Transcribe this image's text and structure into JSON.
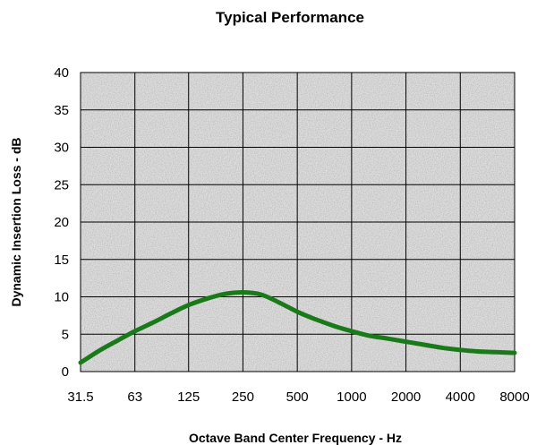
{
  "chart_data": {
    "type": "line",
    "title": "Typical Performance",
    "xlabel": "Octave Band Center Frequency - Hz",
    "ylabel": "Dynamic Insertion Loss - dB",
    "categories": [
      "31.5",
      "63",
      "125",
      "250",
      "500",
      "1000",
      "2000",
      "4000",
      "8000"
    ],
    "ylim": [
      0,
      40
    ],
    "yticks": [
      0,
      5,
      10,
      15,
      20,
      25,
      30,
      35,
      40
    ],
    "grid": true,
    "legend": "none",
    "series": [
      {
        "color": "#1a7a1a",
        "x": [
          31.5,
          40,
          50,
          63,
          80,
          100,
          125,
          160,
          200,
          250,
          315,
          400,
          500,
          630,
          800,
          1000,
          1250,
          1600,
          2000,
          2500,
          3150,
          4000,
          5000,
          6300,
          8000
        ],
        "values": [
          1.2,
          2.8,
          4.1,
          5.4,
          6.6,
          7.8,
          8.9,
          9.8,
          10.4,
          10.6,
          10.3,
          9.2,
          8.0,
          7.0,
          6.1,
          5.4,
          4.8,
          4.4,
          4.0,
          3.6,
          3.2,
          2.9,
          2.7,
          2.6,
          2.5
        ]
      }
    ]
  }
}
